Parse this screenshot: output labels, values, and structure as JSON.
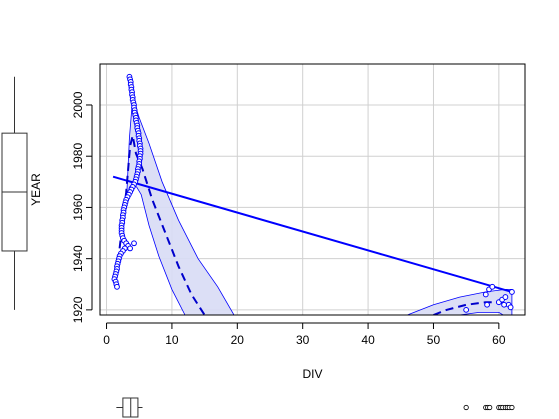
{
  "chart_data": {
    "type": "scatter",
    "xlabel": "DIV",
    "ylabel": "YEAR",
    "xlim": [
      -1,
      64
    ],
    "ylim": [
      1918,
      2016
    ],
    "xticks": [
      "0",
      "10",
      "20",
      "30",
      "40",
      "50",
      "60"
    ],
    "yticks": [
      "1920",
      "1940",
      "1960",
      "1980",
      "2000"
    ],
    "grid": true,
    "colors": {
      "points": "#0000ff",
      "fit_line": "#0000ff",
      "smooth_line": "#0000cc",
      "band_fill": "#d8dcf5",
      "band_stroke": "#0000ff",
      "grid": "#d0d0d0",
      "boxplot": "#333333"
    },
    "series": [
      {
        "kind": "points",
        "cluster": "low-DIV",
        "points": [
          [
            3.5,
            2011
          ],
          [
            3.6,
            2010
          ],
          [
            3.7,
            2009
          ],
          [
            3.7,
            2008
          ],
          [
            3.8,
            2007
          ],
          [
            3.8,
            2006
          ],
          [
            3.9,
            2005
          ],
          [
            3.9,
            2004
          ],
          [
            4.0,
            2003
          ],
          [
            4.0,
            2002
          ],
          [
            4.1,
            2001
          ],
          [
            4.2,
            2000
          ],
          [
            4.2,
            1999
          ],
          [
            4.3,
            1998
          ],
          [
            4.3,
            1997
          ],
          [
            4.4,
            1996
          ],
          [
            4.5,
            1995
          ],
          [
            4.5,
            1994
          ],
          [
            4.6,
            1993
          ],
          [
            4.7,
            1992
          ],
          [
            4.7,
            1991
          ],
          [
            4.8,
            1990
          ],
          [
            4.9,
            1989
          ],
          [
            4.9,
            1988
          ],
          [
            5.0,
            1987
          ],
          [
            5.0,
            1986
          ],
          [
            5.1,
            1985
          ],
          [
            5.1,
            1984
          ],
          [
            5.2,
            1983
          ],
          [
            5.2,
            1982
          ],
          [
            5.2,
            1981
          ],
          [
            5.1,
            1980
          ],
          [
            5.1,
            1979
          ],
          [
            5.0,
            1978
          ],
          [
            5.0,
            1977
          ],
          [
            4.9,
            1976
          ],
          [
            4.8,
            1975
          ],
          [
            4.8,
            1974
          ],
          [
            4.7,
            1973
          ],
          [
            4.6,
            1972
          ],
          [
            4.5,
            1971
          ],
          [
            4.4,
            1970
          ],
          [
            4.2,
            1969
          ],
          [
            4.0,
            1968
          ],
          [
            3.8,
            1967
          ],
          [
            3.6,
            1966
          ],
          [
            3.4,
            1965
          ],
          [
            3.2,
            1964
          ],
          [
            3.0,
            1963
          ],
          [
            2.9,
            1962
          ],
          [
            2.8,
            1961
          ],
          [
            2.7,
            1960
          ],
          [
            2.6,
            1959
          ],
          [
            2.6,
            1958
          ],
          [
            2.5,
            1957
          ],
          [
            2.5,
            1956
          ],
          [
            2.4,
            1955
          ],
          [
            2.4,
            1954
          ],
          [
            2.3,
            1953
          ],
          [
            2.3,
            1952
          ],
          [
            2.3,
            1951
          ],
          [
            2.3,
            1950
          ],
          [
            2.4,
            1949
          ],
          [
            2.5,
            1948
          ],
          [
            2.7,
            1947
          ],
          [
            3.0,
            1946
          ],
          [
            4.2,
            1946
          ],
          [
            3.3,
            1945
          ],
          [
            3.6,
            1944
          ],
          [
            2.8,
            1944
          ],
          [
            2.5,
            1943
          ],
          [
            2.2,
            1942
          ],
          [
            2.0,
            1941
          ],
          [
            1.9,
            1940
          ],
          [
            1.8,
            1939
          ],
          [
            1.7,
            1938
          ],
          [
            1.6,
            1937
          ],
          [
            1.6,
            1936
          ],
          [
            1.5,
            1935
          ],
          [
            1.4,
            1934
          ],
          [
            1.3,
            1933
          ],
          [
            1.2,
            1932
          ],
          [
            1.4,
            1931
          ],
          [
            1.5,
            1930
          ],
          [
            1.6,
            1929
          ]
        ]
      },
      {
        "kind": "points",
        "cluster": "high-DIV",
        "points": [
          [
            55.0,
            1920
          ],
          [
            58.0,
            1926
          ],
          [
            58.5,
            1928
          ],
          [
            59.0,
            1929
          ],
          [
            58.2,
            1922
          ],
          [
            60.0,
            1923
          ],
          [
            60.5,
            1924
          ],
          [
            61.0,
            1925
          ],
          [
            61.5,
            1922
          ],
          [
            62.0,
            1927
          ],
          [
            61.8,
            1921
          ],
          [
            60.8,
            1922
          ]
        ]
      },
      {
        "kind": "linear-fit",
        "from": [
          1,
          1972
        ],
        "to": [
          62,
          1927
        ]
      },
      {
        "kind": "smooth",
        "cluster": "low-DIV",
        "points": [
          [
            2.0,
            1944
          ],
          [
            3.0,
            1966
          ],
          [
            3.6,
            1984
          ],
          [
            4.0,
            1988
          ],
          [
            4.5,
            1981
          ],
          [
            5.5,
            1975
          ],
          [
            7.0,
            1963
          ],
          [
            9.0,
            1950
          ],
          [
            11.0,
            1937
          ],
          [
            13.0,
            1926
          ],
          [
            15.0,
            1918
          ]
        ]
      },
      {
        "kind": "smooth",
        "cluster": "high-DIV",
        "points": [
          [
            50.0,
            1918
          ],
          [
            52.0,
            1920
          ],
          [
            55.0,
            1922
          ],
          [
            58.0,
            1923
          ],
          [
            60.0,
            1923
          ],
          [
            61.5,
            1922
          ]
        ]
      },
      {
        "kind": "band",
        "cluster": "low-DIV",
        "upper": [
          [
            3.5,
            1987
          ],
          [
            4.0,
            2003
          ],
          [
            5.0,
            1995
          ],
          [
            6.5,
            1985
          ],
          [
            8.5,
            1970
          ],
          [
            11.0,
            1955
          ],
          [
            14.0,
            1940
          ],
          [
            17.0,
            1929
          ],
          [
            19.5,
            1918
          ]
        ],
        "lower": [
          [
            12.0,
            1918
          ],
          [
            10.0,
            1928
          ],
          [
            8.0,
            1941
          ],
          [
            6.5,
            1953
          ],
          [
            5.3,
            1965
          ],
          [
            4.6,
            1968
          ],
          [
            3.5,
            1968
          ],
          [
            3.0,
            1960
          ],
          [
            3.5,
            1987
          ]
        ]
      },
      {
        "kind": "band",
        "cluster": "high-DIV",
        "upper": [
          [
            46.0,
            1918
          ],
          [
            50.0,
            1922
          ],
          [
            54.0,
            1925
          ],
          [
            58.0,
            1927
          ],
          [
            61.0,
            1928
          ],
          [
            62.0,
            1928
          ]
        ],
        "lower": [
          [
            62.0,
            1916
          ],
          [
            60.0,
            1919
          ],
          [
            57.0,
            1919
          ],
          [
            54.0,
            1918
          ],
          [
            50.0,
            1917
          ]
        ]
      }
    ],
    "marginal_x": {
      "box": {
        "min": 1.5,
        "q1": 2.5,
        "median": 3.7,
        "q3": 4.8,
        "max": 5.5
      },
      "outliers": [
        55.0,
        58.0,
        58.3,
        58.6,
        60.0,
        60.3,
        60.6,
        61.0,
        61.3,
        61.6,
        62.0
      ]
    },
    "marginal_y": {
      "box": {
        "min": 1920,
        "q1": 1943,
        "median": 1966,
        "q3": 1989,
        "max": 2011
      }
    }
  }
}
